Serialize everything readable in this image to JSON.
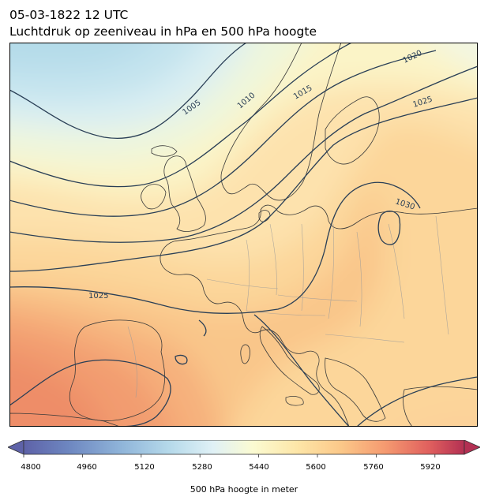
{
  "header": {
    "datetime": "05-03-1822 12 UTC",
    "subtitle": "Luchtdruk op zeeniveau in hPa en 500 hPa hoogte"
  },
  "map": {
    "region": "Europe",
    "isobar_labels": [
      "1005",
      "1010",
      "1015",
      "1020",
      "1025",
      "1030",
      "1025"
    ],
    "isobar_color": "#2a3f56",
    "border_color": "#9a9a9a",
    "coast_color": "#333333"
  },
  "colorbar": {
    "label": "500 hPa hoogte in meter",
    "min": 4800,
    "max": 6000,
    "step": 40,
    "ticks": [
      "4800",
      "4960",
      "5120",
      "5280",
      "5440",
      "5600",
      "5760",
      "5920"
    ],
    "extend": "both",
    "colormap": [
      "#5e62a8",
      "#6d86c0",
      "#8fb4d9",
      "#b5d9ea",
      "#e0f1f6",
      "#fbfbd2",
      "#fde6a8",
      "#fbc889",
      "#f59a70",
      "#e0605e",
      "#b33053"
    ]
  }
}
